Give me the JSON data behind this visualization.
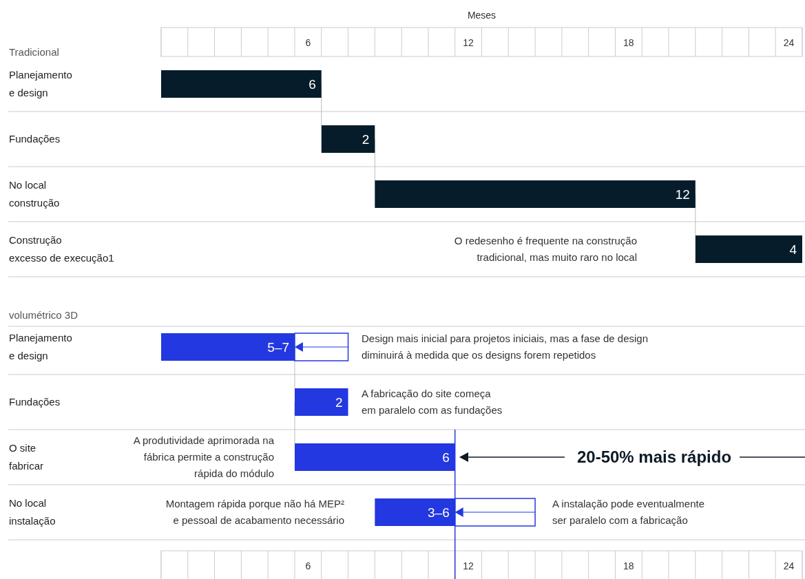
{
  "chart_data": {
    "type": "bar",
    "orientation": "horizontal",
    "xlabel": "Meses",
    "categories": [
      "Tradicional",
      "Planejamento\ne design",
      "Fundações",
      "No local\nconstrução",
      "Construção\nexcesso de execução1",
      "volumétrico 3D",
      "Planejamento\ne design",
      "Fundações",
      "O site\nfabricar",
      "No local\ninstalação"
    ],
    "series": [
      {
        "values": [
          null,
          6,
          2,
          12,
          4,
          null,
          5,
          2,
          6,
          3
        ],
        "base": [
          null,
          0,
          6,
          8,
          20,
          null,
          0,
          5,
          5,
          8
        ],
        "colors": [
          null,
          "#061c2b",
          "#061c2b",
          "#061c2b",
          "#061c2b",
          null,
          "#2338e0",
          "#2338e0",
          "#2338e0",
          "#2338e0"
        ],
        "value_labels": [
          null,
          "6",
          "2",
          "12",
          "4",
          null,
          "5–7",
          "2",
          "6",
          "3–6"
        ]
      },
      {
        "values": [
          null,
          null,
          null,
          null,
          null,
          null,
          2,
          null,
          null,
          3
        ],
        "base": [
          null,
          null,
          null,
          null,
          null,
          null,
          5,
          null,
          null,
          11
        ],
        "color": "#2338e0"
      }
    ],
    "xlim": [
      0,
      24
    ],
    "xticks": [
      {
        "value": 5.5,
        "label": "6"
      },
      {
        "value": 11.5,
        "label": "12"
      },
      {
        "value": 17.5,
        "label": "18"
      },
      {
        "value": 23.5,
        "label": "24"
      }
    ],
    "ref_lines": [
      {
        "axis": "x",
        "value": 11,
        "color": "#2338e0"
      }
    ],
    "annotations": [
      "O redesenho é frequente na construção\ntradicional, mas muito raro no local",
      "Design mais inicial para projetos iniciais, mas a fase de design\ndiminuirá à medida que os designs forem repetidos",
      "A fabricação do site começa\nem paralelo com as fundações",
      "A produtividade aprimorada na\nfábrica permite a construção\nrápida do módulo",
      "20-50% mais rápido",
      "Montagem rápida porque não há MEP²\ne pessoal de acabamento necessário",
      "A instalação pode eventualmente\nser paralelo com a fabricação"
    ]
  }
}
